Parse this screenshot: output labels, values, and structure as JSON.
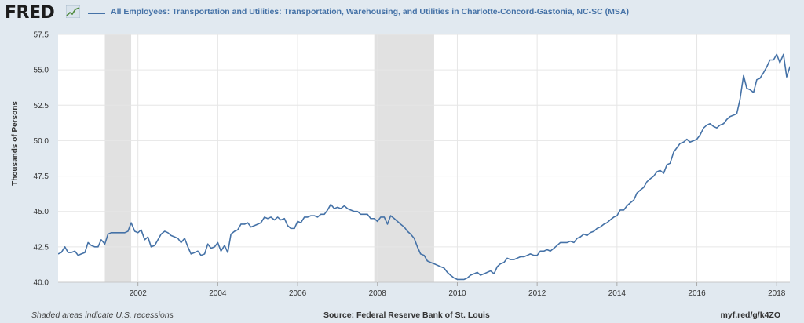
{
  "header": {
    "logo_text": "FRED",
    "logo_icon": "fred-chart-icon",
    "legend_label": "All Employees: Transportation and Utilities: Transportation, Warehousing, and Utilities in Charlotte-Concord-Gastonia, NC-SC (MSA)"
  },
  "footer": {
    "note": "Shaded areas indicate U.S. recessions",
    "source": "Source: Federal Reserve Bank of St. Louis",
    "url": "myf.red/g/k4ZO"
  },
  "colors": {
    "background": "#e1e9f0",
    "plot_background": "#ffffff",
    "series": "#4572a7",
    "recession": "#e1e1e1",
    "grid": "#e6e6e6"
  },
  "chart_data": {
    "type": "line",
    "title": "",
    "xlabel": "",
    "ylabel": "Thousands of Persons",
    "xlim": [
      2000.0,
      2018.33
    ],
    "ylim": [
      40.0,
      57.5
    ],
    "yticks": [
      40.0,
      42.5,
      45.0,
      47.5,
      50.0,
      52.5,
      55.0,
      57.5
    ],
    "ytick_labels": [
      "40.0",
      "42.5",
      "45.0",
      "47.5",
      "50.0",
      "52.5",
      "55.0",
      "57.5"
    ],
    "xticks": [
      2002,
      2004,
      2006,
      2008,
      2010,
      2012,
      2014,
      2016,
      2018
    ],
    "xtick_labels": [
      "2002",
      "2004",
      "2006",
      "2008",
      "2010",
      "2012",
      "2014",
      "2016",
      "2018"
    ],
    "grid": true,
    "legend": "top-left",
    "recessions": [
      {
        "start": 2001.17,
        "end": 2001.83
      },
      {
        "start": 2007.92,
        "end": 2009.42
      }
    ],
    "series": [
      {
        "name": "All Employees: Transportation and Utilities: Transportation, Warehousing, and Utilities in Charlotte-Concord-Gastonia, NC-SC (MSA)",
        "points": [
          [
            2000.0,
            42.0
          ],
          [
            2000.08,
            42.1
          ],
          [
            2000.17,
            42.5
          ],
          [
            2000.25,
            42.1
          ],
          [
            2000.33,
            42.1
          ],
          [
            2000.42,
            42.2
          ],
          [
            2000.5,
            41.9
          ],
          [
            2000.58,
            42.0
          ],
          [
            2000.67,
            42.1
          ],
          [
            2000.75,
            42.8
          ],
          [
            2000.83,
            42.6
          ],
          [
            2000.92,
            42.5
          ],
          [
            2001.0,
            42.5
          ],
          [
            2001.08,
            43.0
          ],
          [
            2001.17,
            42.7
          ],
          [
            2001.25,
            43.4
          ],
          [
            2001.33,
            43.5
          ],
          [
            2001.42,
            43.5
          ],
          [
            2001.5,
            43.5
          ],
          [
            2001.58,
            43.5
          ],
          [
            2001.67,
            43.5
          ],
          [
            2001.75,
            43.6
          ],
          [
            2001.83,
            44.2
          ],
          [
            2001.92,
            43.6
          ],
          [
            2002.0,
            43.5
          ],
          [
            2002.08,
            43.7
          ],
          [
            2002.17,
            43.0
          ],
          [
            2002.25,
            43.2
          ],
          [
            2002.33,
            42.5
          ],
          [
            2002.42,
            42.6
          ],
          [
            2002.5,
            43.0
          ],
          [
            2002.58,
            43.4
          ],
          [
            2002.67,
            43.6
          ],
          [
            2002.75,
            43.5
          ],
          [
            2002.83,
            43.3
          ],
          [
            2002.92,
            43.2
          ],
          [
            2003.0,
            43.1
          ],
          [
            2003.08,
            42.8
          ],
          [
            2003.17,
            43.1
          ],
          [
            2003.25,
            42.5
          ],
          [
            2003.33,
            42.0
          ],
          [
            2003.42,
            42.1
          ],
          [
            2003.5,
            42.2
          ],
          [
            2003.58,
            41.9
          ],
          [
            2003.67,
            42.0
          ],
          [
            2003.75,
            42.7
          ],
          [
            2003.83,
            42.4
          ],
          [
            2003.92,
            42.5
          ],
          [
            2004.0,
            42.8
          ],
          [
            2004.08,
            42.2
          ],
          [
            2004.17,
            42.6
          ],
          [
            2004.25,
            42.1
          ],
          [
            2004.33,
            43.4
          ],
          [
            2004.42,
            43.6
          ],
          [
            2004.5,
            43.7
          ],
          [
            2004.58,
            44.1
          ],
          [
            2004.67,
            44.1
          ],
          [
            2004.75,
            44.2
          ],
          [
            2004.83,
            43.9
          ],
          [
            2004.92,
            44.0
          ],
          [
            2005.0,
            44.1
          ],
          [
            2005.08,
            44.2
          ],
          [
            2005.17,
            44.6
          ],
          [
            2005.25,
            44.5
          ],
          [
            2005.33,
            44.6
          ],
          [
            2005.42,
            44.4
          ],
          [
            2005.5,
            44.6
          ],
          [
            2005.58,
            44.4
          ],
          [
            2005.67,
            44.5
          ],
          [
            2005.75,
            44.0
          ],
          [
            2005.83,
            43.8
          ],
          [
            2005.92,
            43.8
          ],
          [
            2006.0,
            44.3
          ],
          [
            2006.08,
            44.2
          ],
          [
            2006.17,
            44.6
          ],
          [
            2006.25,
            44.6
          ],
          [
            2006.33,
            44.7
          ],
          [
            2006.42,
            44.7
          ],
          [
            2006.5,
            44.6
          ],
          [
            2006.58,
            44.8
          ],
          [
            2006.67,
            44.8
          ],
          [
            2006.75,
            45.1
          ],
          [
            2006.83,
            45.5
          ],
          [
            2006.92,
            45.2
          ],
          [
            2007.0,
            45.3
          ],
          [
            2007.08,
            45.2
          ],
          [
            2007.17,
            45.4
          ],
          [
            2007.25,
            45.2
          ],
          [
            2007.33,
            45.1
          ],
          [
            2007.42,
            45.0
          ],
          [
            2007.5,
            45.0
          ],
          [
            2007.58,
            44.8
          ],
          [
            2007.67,
            44.8
          ],
          [
            2007.75,
            44.8
          ],
          [
            2007.83,
            44.5
          ],
          [
            2007.92,
            44.5
          ],
          [
            2008.0,
            44.3
          ],
          [
            2008.08,
            44.6
          ],
          [
            2008.17,
            44.6
          ],
          [
            2008.25,
            44.1
          ],
          [
            2008.33,
            44.7
          ],
          [
            2008.42,
            44.5
          ],
          [
            2008.5,
            44.3
          ],
          [
            2008.58,
            44.1
          ],
          [
            2008.67,
            43.9
          ],
          [
            2008.75,
            43.6
          ],
          [
            2008.83,
            43.4
          ],
          [
            2008.92,
            43.1
          ],
          [
            2009.0,
            42.5
          ],
          [
            2009.08,
            42.0
          ],
          [
            2009.17,
            41.9
          ],
          [
            2009.25,
            41.5
          ],
          [
            2009.33,
            41.4
          ],
          [
            2009.42,
            41.3
          ],
          [
            2009.5,
            41.2
          ],
          [
            2009.58,
            41.1
          ],
          [
            2009.67,
            41.0
          ],
          [
            2009.75,
            40.7
          ],
          [
            2009.83,
            40.5
          ],
          [
            2009.92,
            40.3
          ],
          [
            2010.0,
            40.2
          ],
          [
            2010.08,
            40.2
          ],
          [
            2010.17,
            40.2
          ],
          [
            2010.25,
            40.3
          ],
          [
            2010.33,
            40.5
          ],
          [
            2010.42,
            40.6
          ],
          [
            2010.5,
            40.7
          ],
          [
            2010.58,
            40.5
          ],
          [
            2010.67,
            40.6
          ],
          [
            2010.75,
            40.7
          ],
          [
            2010.83,
            40.8
          ],
          [
            2010.92,
            40.6
          ],
          [
            2011.0,
            41.1
          ],
          [
            2011.08,
            41.3
          ],
          [
            2011.17,
            41.4
          ],
          [
            2011.25,
            41.7
          ],
          [
            2011.33,
            41.6
          ],
          [
            2011.42,
            41.6
          ],
          [
            2011.5,
            41.7
          ],
          [
            2011.58,
            41.8
          ],
          [
            2011.67,
            41.8
          ],
          [
            2011.75,
            41.9
          ],
          [
            2011.83,
            42.0
          ],
          [
            2011.92,
            41.9
          ],
          [
            2012.0,
            41.9
          ],
          [
            2012.08,
            42.2
          ],
          [
            2012.17,
            42.2
          ],
          [
            2012.25,
            42.3
          ],
          [
            2012.33,
            42.2
          ],
          [
            2012.42,
            42.4
          ],
          [
            2012.5,
            42.6
          ],
          [
            2012.58,
            42.8
          ],
          [
            2012.67,
            42.8
          ],
          [
            2012.75,
            42.8
          ],
          [
            2012.83,
            42.9
          ],
          [
            2012.92,
            42.8
          ],
          [
            2013.0,
            43.1
          ],
          [
            2013.08,
            43.2
          ],
          [
            2013.17,
            43.4
          ],
          [
            2013.25,
            43.3
          ],
          [
            2013.33,
            43.5
          ],
          [
            2013.42,
            43.6
          ],
          [
            2013.5,
            43.8
          ],
          [
            2013.58,
            43.9
          ],
          [
            2013.67,
            44.1
          ],
          [
            2013.75,
            44.2
          ],
          [
            2013.83,
            44.4
          ],
          [
            2013.92,
            44.6
          ],
          [
            2014.0,
            44.7
          ],
          [
            2014.08,
            45.1
          ],
          [
            2014.17,
            45.1
          ],
          [
            2014.25,
            45.4
          ],
          [
            2014.33,
            45.6
          ],
          [
            2014.42,
            45.8
          ],
          [
            2014.5,
            46.3
          ],
          [
            2014.58,
            46.5
          ],
          [
            2014.67,
            46.7
          ],
          [
            2014.75,
            47.1
          ],
          [
            2014.83,
            47.3
          ],
          [
            2014.92,
            47.5
          ],
          [
            2015.0,
            47.8
          ],
          [
            2015.08,
            47.9
          ],
          [
            2015.17,
            47.7
          ],
          [
            2015.25,
            48.3
          ],
          [
            2015.33,
            48.4
          ],
          [
            2015.42,
            49.2
          ],
          [
            2015.5,
            49.5
          ],
          [
            2015.58,
            49.8
          ],
          [
            2015.67,
            49.9
          ],
          [
            2015.75,
            50.1
          ],
          [
            2015.83,
            49.9
          ],
          [
            2015.92,
            50.0
          ],
          [
            2016.0,
            50.1
          ],
          [
            2016.08,
            50.4
          ],
          [
            2016.17,
            50.9
          ],
          [
            2016.25,
            51.1
          ],
          [
            2016.33,
            51.2
          ],
          [
            2016.42,
            51.0
          ],
          [
            2016.5,
            50.9
          ],
          [
            2016.58,
            51.1
          ],
          [
            2016.67,
            51.2
          ],
          [
            2016.75,
            51.5
          ],
          [
            2016.83,
            51.7
          ],
          [
            2016.92,
            51.8
          ],
          [
            2017.0,
            51.9
          ],
          [
            2017.08,
            52.9
          ],
          [
            2017.17,
            54.6
          ],
          [
            2017.25,
            53.7
          ],
          [
            2017.33,
            53.6
          ],
          [
            2017.42,
            53.4
          ],
          [
            2017.5,
            54.3
          ],
          [
            2017.58,
            54.4
          ],
          [
            2017.67,
            54.8
          ],
          [
            2017.75,
            55.2
          ],
          [
            2017.83,
            55.7
          ],
          [
            2017.92,
            55.7
          ],
          [
            2018.0,
            56.1
          ],
          [
            2018.08,
            55.5
          ],
          [
            2018.17,
            56.1
          ],
          [
            2018.25,
            54.5
          ],
          [
            2018.33,
            55.2
          ],
          [
            2018.42,
            55.6
          ],
          [
            2018.5,
            55.5
          ]
        ]
      }
    ]
  }
}
